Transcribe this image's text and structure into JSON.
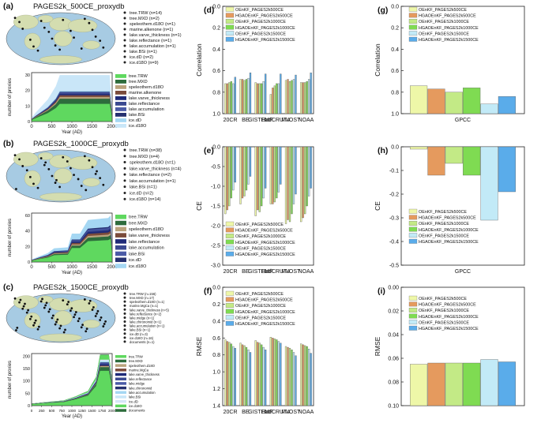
{
  "colors": {
    "series": [
      "#eef7a8",
      "#e59a5e",
      "#c3ea86",
      "#7fdb52",
      "#c2eaf7",
      "#5aacea"
    ],
    "ocean": "#a7cbe3",
    "land": "#d4ddb0",
    "prox": [
      "#5fd85f",
      "#2d6c3c",
      "#b9a37d",
      "#7b4b3b",
      "#1f2a78",
      "#3a4890",
      "#4a5aa6",
      "#243070",
      "#a5d7f3",
      "#c9e6f8",
      "#d6e6f7"
    ]
  },
  "left_panels": [
    {
      "label": "(a)",
      "title": "PAGES2k_500CE_proxydb",
      "map_legend": [
        "tree.TRW (n=14)",
        "tree.MXD (n=2)",
        "speleothem.d18O (n=1)",
        "marine.alkenone (n=1)",
        "lake.varve_thickness (n=1)",
        "lake.reflectance (n=1)",
        "lake.accumulation (n=1)",
        "lake.BSi (n=1)",
        "ice.dD (n=2)",
        "ice.d18O (n=9)"
      ],
      "stack_legend": [
        "tree.TRW",
        "tree.MXD",
        "speleothem.d18O",
        "marine.alkenone",
        "lake.varve_thickness",
        "lake.reflectance",
        "lake.accumulation",
        "lake.BSi",
        "ice.dD",
        "ice.d18O"
      ],
      "ylabel": "number of proxies",
      "xlabel": "Year (AD)",
      "xticks": [
        "0",
        "500",
        "1000",
        "1500",
        "2000"
      ],
      "yticks": [
        "0",
        "10",
        "20",
        "30"
      ]
    },
    {
      "label": "(b)",
      "title": "PAGES2k_1000CE_proxydb",
      "map_legend": [
        "tree.TRW (n=38)",
        "tree.MXD (n=4)",
        "speleothem.d18O (n=1)",
        "lake.varve_thickness (n=4)",
        "lake.reflectance (n=2)",
        "lake.accumulation (n=1)",
        "lake.BSi (n=1)",
        "ice.dD (n=2)",
        "ice.d18O (n=14)"
      ],
      "stack_legend": [
        "tree.TRW",
        "tree.MXD",
        "speleothem.d18O",
        "lake.varve_thickness",
        "lake.reflectance",
        "lake.accumulation",
        "lake.BSi",
        "ice.dD",
        "ice.d18O"
      ],
      "ylabel": "number of proxies",
      "xlabel": "Year (AD)",
      "xticks": [
        "0",
        "500",
        "1000",
        "1500",
        "2000"
      ],
      "yticks": [
        "0",
        "20",
        "40",
        "60"
      ]
    },
    {
      "label": "(c)",
      "title": "PAGES2k_1500CE_proxydb",
      "map_legend": [
        "tree.TRW (n=156)",
        "tree.MXD (n=17)",
        "speleothem.d18O (n=1)",
        "marine.MgCa (n=1)",
        "lake.varve_thickness (n=5)",
        "lake.reflectance (n=2)",
        "lake.midge (n=1)",
        "lake.chironomid (n=1)",
        "lake.accumulation (n=1)",
        "lake.BSi (n=1)",
        "ice.dD (n=3)",
        "ice.d18O (n=16)",
        "documents (n=1)"
      ],
      "stack_legend": [
        "tree.TRW",
        "tree.MXD",
        "speleothem.d18O",
        "marine.MgCa",
        "lake.varve_thickness",
        "lake.reflectance",
        "lake.midge",
        "lake.chironomid",
        "lake.accumulation",
        "lake.BSi",
        "ice.dD",
        "ice.d18O",
        "documents"
      ],
      "ylabel": "number of proxies",
      "xlabel": "Year (AD)",
      "xticks": [
        "0",
        "250",
        "500",
        "750",
        "1000",
        "1250",
        "1500",
        "1750",
        "2000"
      ],
      "yticks": [
        "0",
        "50",
        "100",
        "150",
        "200"
      ]
    }
  ],
  "chart_data": [
    {
      "panel": "(d)",
      "type": "bar",
      "ylabel": "Correlation",
      "categories": [
        "20CR",
        "BE",
        "GISTEMP",
        "HadCRUT4",
        "MLOST",
        "NOAA"
      ],
      "ylim": [
        0,
        1.0
      ],
      "yticks": [
        "0.0",
        "0.2",
        "0.4",
        "0.6",
        "0.8",
        "1.0"
      ],
      "legend": [
        "OEnKF_PAGES2k500CE",
        "HGAOEnKF_PAGES2k500CE",
        "OEnKF_PAGES2k1000CE",
        "HGAOEnKF_PAGES2k1000CE",
        "OEnKF_PAGES2k1500CE",
        "HGAOEnKF_PAGES2k1500CE"
      ],
      "series": [
        {
          "name": "OEnKF_PAGES2k500CE",
          "values": [
            0.28,
            0.32,
            0.29,
            0.18,
            0.31,
            0.29
          ]
        },
        {
          "name": "HGAOEnKF_PAGES2k500CE",
          "values": [
            0.28,
            0.32,
            0.28,
            0.24,
            0.32,
            0.29
          ]
        },
        {
          "name": "OEnKF_PAGES2k1000CE",
          "values": [
            0.29,
            0.31,
            0.28,
            0.26,
            0.3,
            0.29
          ]
        },
        {
          "name": "HGAOEnKF_PAGES2k1000CE",
          "values": [
            0.3,
            0.32,
            0.28,
            0.28,
            0.31,
            0.3
          ]
        },
        {
          "name": "OEnKF_PAGES2k1500CE",
          "values": [
            0.28,
            0.33,
            0.3,
            0.28,
            0.32,
            0.32
          ]
        },
        {
          "name": "HGAOEnKF_PAGES2k1500CE",
          "values": [
            0.34,
            0.38,
            0.37,
            0.37,
            0.36,
            0.38
          ]
        }
      ]
    },
    {
      "panel": "(e)",
      "type": "bar",
      "ylabel": "CE",
      "categories": [
        "20CR",
        "BE",
        "GISTEMP",
        "HadCRUT4",
        "MLOST",
        "NOAA"
      ],
      "ylim": [
        -3.0,
        0
      ],
      "yticks": [
        "0.0",
        "-0.5",
        "-1.0",
        "-1.5",
        "-2.0",
        "-2.5",
        "-3.0"
      ],
      "legend": [
        "OEnKF_PAGES2k500CE",
        "HGAOEnKF_PAGES2k500CE",
        "OEnKF_PAGES2k1000CE",
        "HGAOEnKF_PAGES2k1000CE",
        "OEnKF_PAGES2k1500CE",
        "HGAOEnKF_PAGES2k1500CE"
      ],
      "series": [
        {
          "name": "OEnKF_PAGES2k500CE",
          "values": [
            -1.7,
            -1.45,
            -1.75,
            -1.45,
            -1.95,
            -1.9
          ]
        },
        {
          "name": "HGAOEnKF_PAGES2k500CE",
          "values": [
            -1.6,
            -1.3,
            -1.6,
            -1.45,
            -1.85,
            -1.8
          ]
        },
        {
          "name": "OEnKF_PAGES2k1000CE",
          "values": [
            -1.5,
            -1.25,
            -1.65,
            -1.4,
            -1.9,
            -1.7
          ]
        },
        {
          "name": "HGAOEnKF_PAGES2k1000CE",
          "values": [
            -1.3,
            -1.1,
            -1.5,
            -1.3,
            -1.7,
            -1.5
          ]
        },
        {
          "name": "OEnKF_PAGES2k1500CE",
          "values": [
            -1.1,
            -0.95,
            -1.3,
            -1.15,
            -1.45,
            -1.25
          ]
        },
        {
          "name": "HGAOEnKF_PAGES2k1500CE",
          "values": [
            -0.9,
            -0.75,
            -1.05,
            -0.95,
            -1.2,
            -1.05
          ]
        }
      ]
    },
    {
      "panel": "(f)",
      "type": "bar",
      "ylabel": "RMSE",
      "categories": [
        "20CR",
        "BE",
        "GISTEMP",
        "HadCRUT4",
        "MLOST",
        "NOAA"
      ],
      "ylim": [
        0,
        1.4
      ],
      "yticks": [
        "0.0",
        "0.2",
        "0.4",
        "0.6",
        "0.8",
        "1.0",
        "1.2",
        "1.4"
      ],
      "legend": [
        "OEnKF_PAGES2k500CE",
        "HGAOEnKF_PAGES2k500CE",
        "OEnKF_PAGES2k1000CE",
        "HGAOEnKF_PAGES2k1000CE",
        "OEnKF_PAGES2k1500CE",
        "HGAOEnKF_PAGES2k1500CE"
      ],
      "series": [
        {
          "name": "OEnKF_PAGES2k500CE",
          "values": [
            0.78,
            0.74,
            0.77,
            0.81,
            0.7,
            0.73
          ]
        },
        {
          "name": "HGAOEnKF_PAGES2k500CE",
          "values": [
            0.76,
            0.72,
            0.75,
            0.8,
            0.69,
            0.72
          ]
        },
        {
          "name": "OEnKF_PAGES2k1000CE",
          "values": [
            0.75,
            0.71,
            0.74,
            0.79,
            0.68,
            0.71
          ]
        },
        {
          "name": "HGAOEnKF_PAGES2k1000CE",
          "values": [
            0.73,
            0.69,
            0.72,
            0.78,
            0.66,
            0.7
          ]
        },
        {
          "name": "OEnKF_PAGES2k1500CE",
          "values": [
            0.7,
            0.66,
            0.69,
            0.76,
            0.63,
            0.67
          ]
        },
        {
          "name": "HGAOEnKF_PAGES2k1500CE",
          "values": [
            0.68,
            0.63,
            0.66,
            0.74,
            0.59,
            0.62
          ]
        }
      ]
    },
    {
      "panel": "(g)",
      "type": "bar",
      "ylabel": "Correlation",
      "categories": [
        "GPCC"
      ],
      "ylim": [
        0,
        1.0
      ],
      "yticks": [
        "0.0",
        "0.2",
        "0.4",
        "0.6",
        "0.8",
        "1.0"
      ],
      "legend": [
        "OEnKF_PAGES2k500CE",
        "HGAOEnKF_PAGES2k500CE",
        "OEnKF_PAGES2k1000CE",
        "HGAOEnKF_PAGES2k1000CE",
        "OEnKF_PAGES2k1500CE",
        "HGAOEnKF_PAGES2k1500CE"
      ],
      "series": [
        {
          "name": "OEnKF_PAGES2k500CE",
          "values": [
            0.26
          ]
        },
        {
          "name": "HGAOEnKF_PAGES2k500CE",
          "values": [
            0.23
          ]
        },
        {
          "name": "OEnKF_PAGES2k1000CE",
          "values": [
            0.2
          ]
        },
        {
          "name": "HGAOEnKF_PAGES2k1000CE",
          "values": [
            0.24
          ]
        },
        {
          "name": "OEnKF_PAGES2k1500CE",
          "values": [
            0.09
          ]
        },
        {
          "name": "HGAOEnKF_PAGES2k1500CE",
          "values": [
            0.16
          ]
        }
      ]
    },
    {
      "panel": "(h)",
      "type": "bar",
      "ylabel": "CE",
      "categories": [
        "GPCC"
      ],
      "ylim": [
        -0.5,
        0
      ],
      "yticks": [
        "0.0",
        "-0.1",
        "-0.2",
        "-0.3",
        "-0.4",
        "-0.5"
      ],
      "legend": [
        "OEnKF_PAGES2k500CE",
        "HGAOEnKF_PAGES2k500CE",
        "OEnKF_PAGES2k1000CE",
        "HGAOEnKF_PAGES2k1000CE",
        "OEnKF_PAGES2k1500CE",
        "HGAOEnKF_PAGES2k1500CE"
      ],
      "series": [
        {
          "name": "OEnKF_PAGES2k500CE",
          "values": [
            -0.01
          ]
        },
        {
          "name": "HGAOEnKF_PAGES2k500CE",
          "values": [
            -0.12
          ]
        },
        {
          "name": "OEnKF_PAGES2k1000CE",
          "values": [
            -0.07
          ]
        },
        {
          "name": "HGAOEnKF_PAGES2k1000CE",
          "values": [
            -0.12
          ]
        },
        {
          "name": "OEnKF_PAGES2k1500CE",
          "values": [
            -0.31
          ]
        },
        {
          "name": "HGAOEnKF_PAGES2k1500CE",
          "values": [
            -0.19
          ]
        }
      ]
    },
    {
      "panel": "(i)",
      "type": "bar",
      "ylabel": "RMSE",
      "categories": [
        ""
      ],
      "ylim": [
        0,
        0.1
      ],
      "yticks": [
        "0.00",
        "0.02",
        "0.04",
        "0.06",
        "0.08",
        "0.10"
      ],
      "legend": [
        "OEnKF_PAGES2k500CE",
        "HGAOEnKF_PAGES2k500CE",
        "OEnKF_PAGES2k1000CE",
        "HGAOEnKF_PAGES2k1000CE",
        "OEnKF_PAGES2k1500CE",
        "HGAOEnKF_PAGES2k1500CE"
      ],
      "series": [
        {
          "name": "OEnKF_PAGES2k500CE",
          "values": [
            0.035
          ]
        },
        {
          "name": "HGAOEnKF_PAGES2k500CE",
          "values": [
            0.036
          ]
        },
        {
          "name": "OEnKF_PAGES2k1000CE",
          "values": [
            0.036
          ]
        },
        {
          "name": "HGAOEnKF_PAGES2k1000CE",
          "values": [
            0.036
          ]
        },
        {
          "name": "OEnKF_PAGES2k1500CE",
          "values": [
            0.039
          ]
        },
        {
          "name": "HGAOEnKF_PAGES2k1500CE",
          "values": [
            0.037
          ]
        }
      ]
    }
  ]
}
